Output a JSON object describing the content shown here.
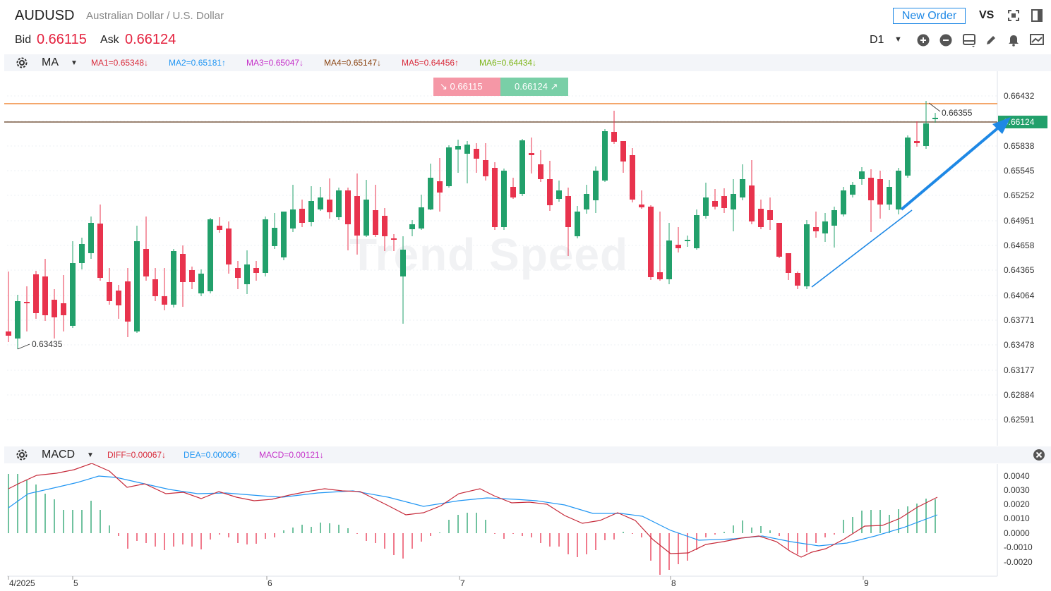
{
  "header": {
    "symbol": "AUDUSD",
    "description": "Australian Dollar / U.S. Dollar",
    "bid_label": "Bid",
    "bid_value": "0.66115",
    "ask_label": "Ask",
    "ask_value": "0.66124",
    "new_order_label": "New Order",
    "vs_label": "VS",
    "period": "D1"
  },
  "ma_bar": {
    "indicator": "MA",
    "values": [
      {
        "text": "MA1=0.65348↓",
        "color": "#d92c3c"
      },
      {
        "text": "MA2=0.65181↑",
        "color": "#2196f3"
      },
      {
        "text": "MA3=0.65047↓",
        "color": "#c531c9"
      },
      {
        "text": "MA4=0.65147↓",
        "color": "#8b4513"
      },
      {
        "text": "MA5=0.64456↑",
        "color": "#d92c3c"
      },
      {
        "text": "MA6=0.64434↓",
        "color": "#7cb518"
      }
    ]
  },
  "price_boxes": {
    "sell": "0.66115",
    "buy": "0.66124"
  },
  "price_chart": {
    "y_ticks": [
      "0.66432",
      "0.66124",
      "0.65838",
      "0.65545",
      "0.65252",
      "0.64951",
      "0.64658",
      "0.64365",
      "0.64064",
      "0.63771",
      "0.63478",
      "0.63177",
      "0.62884",
      "0.62591"
    ],
    "current_price_tag": "0.66124",
    "high_label": "0.66355",
    "low_label": "0.63435",
    "watermark": "Trend Speed",
    "colors": {
      "up": "#22a06b",
      "down": "#e8334d",
      "accent": "#1e88e5",
      "orange_line": "#f08a3a"
    }
  },
  "macd_bar": {
    "indicator": "MACD",
    "values": [
      {
        "text": "DIFF=0.00067↓",
        "color": "#d92c3c"
      },
      {
        "text": "DEA=0.00006↑",
        "color": "#2196f3"
      },
      {
        "text": "MACD=0.00121↓",
        "color": "#c531c9"
      }
    ]
  },
  "macd_chart": {
    "y_ticks": [
      "0.0040",
      "0.0030",
      "0.0020",
      "0.0010",
      "0.0000",
      "-0.0010",
      "-0.0020"
    ]
  },
  "x_axis": {
    "labels": [
      "4/2025",
      "5",
      "6",
      "7",
      "8",
      "9"
    ]
  },
  "icons": {
    "toolbar": [
      "expand-icon",
      "panel-icon",
      "zoom-in-icon",
      "zoom-out-icon",
      "layout-icon",
      "pencil-icon",
      "bell-icon",
      "screenshot-icon"
    ],
    "gear": "gear-icon",
    "close": "close-icon"
  }
}
